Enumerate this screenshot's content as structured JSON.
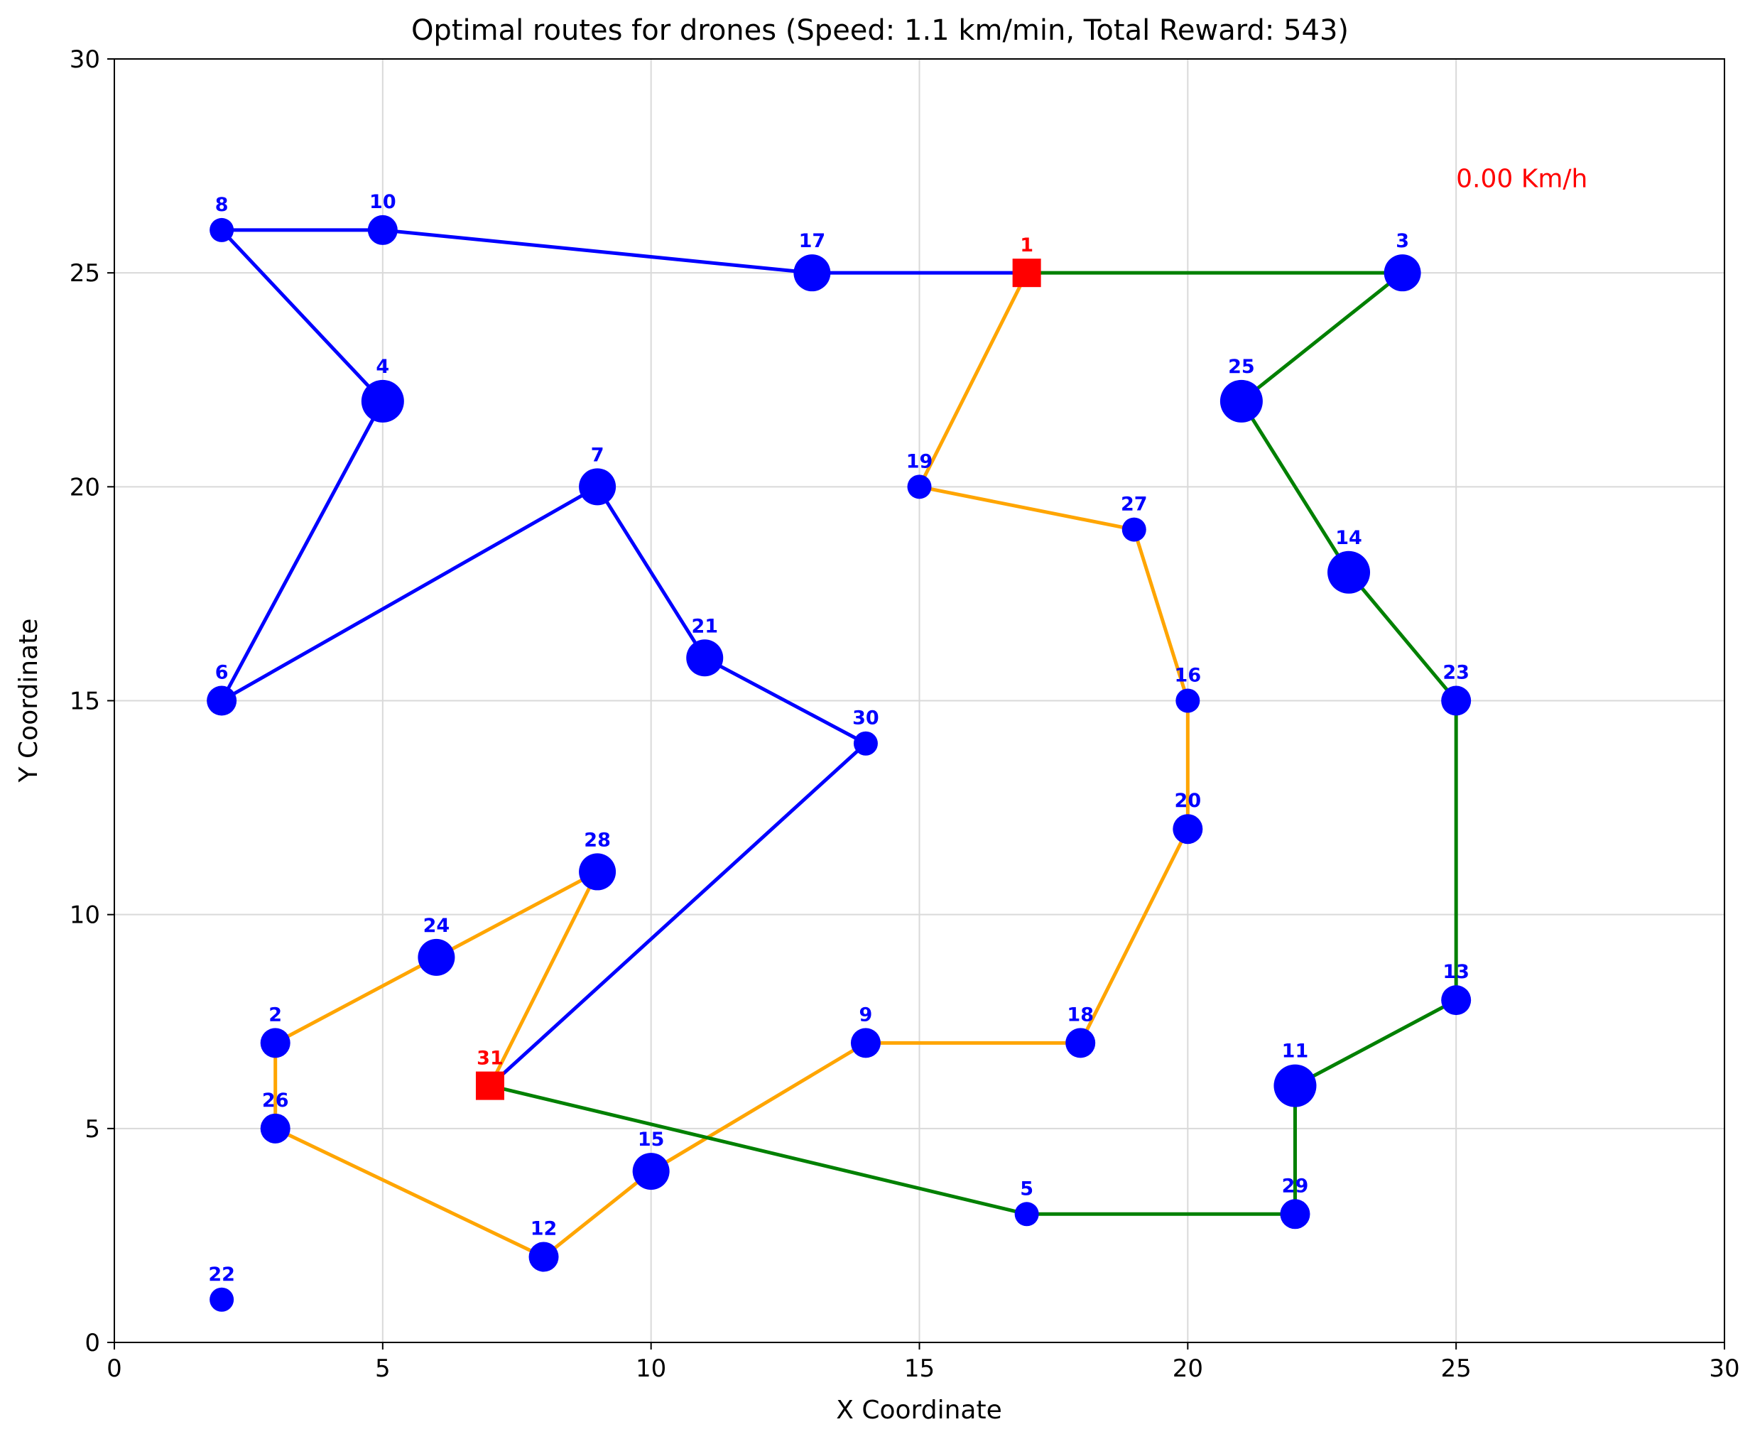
{
  "chart_data": {
    "type": "scatter",
    "title": "Optimal routes for drones (Speed: 1.1 km/min, Total Reward: 543)",
    "xlabel": "X Coordinate",
    "ylabel": "Y Coordinate",
    "xlim": [
      0,
      30
    ],
    "ylim": [
      0,
      30
    ],
    "xticks": [
      0,
      5,
      10,
      15,
      20,
      25,
      30
    ],
    "yticks": [
      0,
      5,
      10,
      15,
      20,
      25,
      30
    ],
    "grid": true,
    "annotation": {
      "text": "0.00 Km/h",
      "x": 25,
      "y": 27,
      "color": "#ff0000"
    },
    "nodes": [
      {
        "id": "1",
        "x": 17,
        "y": 25,
        "kind": "depot",
        "size": 0
      },
      {
        "id": "2",
        "x": 3,
        "y": 7,
        "kind": "target",
        "size": 2
      },
      {
        "id": "3",
        "x": 24,
        "y": 25,
        "kind": "target",
        "size": 3
      },
      {
        "id": "4",
        "x": 5,
        "y": 22,
        "kind": "target",
        "size": 4
      },
      {
        "id": "5",
        "x": 17,
        "y": 3,
        "kind": "target",
        "size": 1
      },
      {
        "id": "6",
        "x": 2,
        "y": 15,
        "kind": "target",
        "size": 2
      },
      {
        "id": "7",
        "x": 9,
        "y": 20,
        "kind": "target",
        "size": 3
      },
      {
        "id": "8",
        "x": 2,
        "y": 26,
        "kind": "target",
        "size": 1
      },
      {
        "id": "9",
        "x": 14,
        "y": 7,
        "kind": "target",
        "size": 2
      },
      {
        "id": "10",
        "x": 5,
        "y": 26,
        "kind": "target",
        "size": 2
      },
      {
        "id": "11",
        "x": 22,
        "y": 6,
        "kind": "target",
        "size": 4
      },
      {
        "id": "12",
        "x": 8,
        "y": 2,
        "kind": "target",
        "size": 2
      },
      {
        "id": "13",
        "x": 25,
        "y": 8,
        "kind": "target",
        "size": 2
      },
      {
        "id": "14",
        "x": 23,
        "y": 18,
        "kind": "target",
        "size": 4
      },
      {
        "id": "15",
        "x": 10,
        "y": 4,
        "kind": "target",
        "size": 3
      },
      {
        "id": "16",
        "x": 20,
        "y": 15,
        "kind": "target",
        "size": 1
      },
      {
        "id": "17",
        "x": 13,
        "y": 25,
        "kind": "target",
        "size": 3
      },
      {
        "id": "18",
        "x": 18,
        "y": 7,
        "kind": "target",
        "size": 2
      },
      {
        "id": "19",
        "x": 15,
        "y": 20,
        "kind": "target",
        "size": 1
      },
      {
        "id": "20",
        "x": 20,
        "y": 12,
        "kind": "target",
        "size": 2
      },
      {
        "id": "21",
        "x": 11,
        "y": 16,
        "kind": "target",
        "size": 3
      },
      {
        "id": "22",
        "x": 2,
        "y": 1,
        "kind": "target",
        "size": 1
      },
      {
        "id": "23",
        "x": 25,
        "y": 15,
        "kind": "target",
        "size": 2
      },
      {
        "id": "24",
        "x": 6,
        "y": 9,
        "kind": "target",
        "size": 3
      },
      {
        "id": "25",
        "x": 21,
        "y": 22,
        "kind": "target",
        "size": 4
      },
      {
        "id": "26",
        "x": 3,
        "y": 5,
        "kind": "target",
        "size": 2
      },
      {
        "id": "27",
        "x": 19,
        "y": 19,
        "kind": "target",
        "size": 1
      },
      {
        "id": "28",
        "x": 9,
        "y": 11,
        "kind": "target",
        "size": 3
      },
      {
        "id": "29",
        "x": 22,
        "y": 3,
        "kind": "target",
        "size": 2
      },
      {
        "id": "30",
        "x": 14,
        "y": 14,
        "kind": "target",
        "size": 1
      },
      {
        "id": "31",
        "x": 7,
        "y": 6,
        "kind": "depot",
        "size": 0
      }
    ],
    "routes": [
      {
        "color": "#0000ff",
        "path": [
          "1",
          "17",
          "10",
          "8",
          "4",
          "6",
          "7",
          "21",
          "30",
          "31"
        ]
      },
      {
        "color": "#ffa500",
        "path": [
          "1",
          "19",
          "27",
          "16",
          "20",
          "18",
          "9",
          "15",
          "12",
          "26",
          "2",
          "24",
          "28",
          "31"
        ]
      },
      {
        "color": "#008000",
        "path": [
          "1",
          "3",
          "25",
          "14",
          "23",
          "13",
          "11",
          "29",
          "5",
          "31"
        ]
      }
    ],
    "colors": {
      "target": "#0000ff",
      "target_label": "#0000ff",
      "depot": "#ff0000",
      "depot_label": "#ff0000"
    }
  }
}
